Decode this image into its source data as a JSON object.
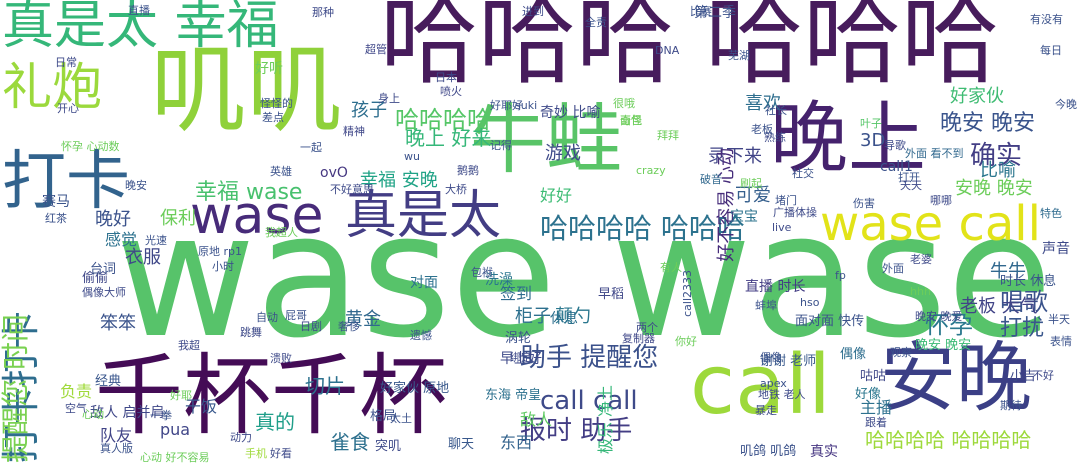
{
  "cloud": {
    "words": [
      {
        "text": "wase wase",
        "color": "#57c36a",
        "rot": 0
      },
      {
        "text": "哈哈哈 哈哈哈",
        "color": "#471c5c",
        "rot": 0
      },
      {
        "text": "叽叽",
        "color": "#8fd13a",
        "rot": 0
      },
      {
        "text": "牛蛙",
        "color": "#59c467",
        "rot": 0
      },
      {
        "text": "千杯千杯",
        "color": "#440c56",
        "rot": 0
      },
      {
        "text": "晚上",
        "color": "#45226d",
        "rot": 0
      },
      {
        "text": "安晚",
        "color": "#3b3f86",
        "rot": 0
      },
      {
        "text": "call",
        "color": "#9dd93b",
        "rot": 0
      },
      {
        "text": "打卡",
        "color": "#32638d",
        "rot": 0
      },
      {
        "text": "wase",
        "color": "#472b79",
        "rot": 0
      },
      {
        "text": "真是太",
        "color": "#433d84",
        "rot": 0
      },
      {
        "text": "wase call",
        "color": "#e2e319",
        "rot": 0
      },
      {
        "text": "真是太 幸福",
        "color": "#35b779",
        "rot": 0
      },
      {
        "text": "礼炮",
        "color": "#9bd93c",
        "rot": 0
      },
      {
        "text": "打卡打卡",
        "color": "#2e6d8e",
        "rot": 270
      },
      {
        "text": "提醒您 时间",
        "color": "#7ad151",
        "rot": 270
      },
      {
        "text": "哈哈哈哈 哈哈哈",
        "color": "#2c728e",
        "rot": 0
      },
      {
        "text": "助手 提醒您",
        "color": "#3b518b",
        "rot": 0
      },
      {
        "text": "报时 助手",
        "color": "#433d84",
        "rot": 0
      },
      {
        "text": "call call",
        "color": "#3e4a89",
        "rot": 0
      },
      {
        "text": "哈哈哈哈 哈哈哈哈",
        "color": "#9dd93b",
        "rot": 0
      },
      {
        "text": "晚安 晚安",
        "color": "#3a548c",
        "rot": 0
      },
      {
        "text": "确实",
        "color": "#433e85",
        "rot": 0
      },
      {
        "text": "哈哈哈哈",
        "color": "#55c667",
        "rot": 0
      },
      {
        "text": "幸福 wase",
        "color": "#48c16e",
        "rot": 0
      },
      {
        "text": "幸福 安晚",
        "color": "#20a386",
        "rot": 0
      },
      {
        "text": "晚上 好来",
        "color": "#35b779",
        "rot": 0
      },
      {
        "text": "录下来",
        "color": "#414487",
        "rot": 0
      },
      {
        "text": "好不容易 心动",
        "color": "#472d7b",
        "rot": 270
      },
      {
        "text": "唱歌",
        "color": "#3a538b",
        "rot": 0
      },
      {
        "text": "怀孕",
        "color": "#2a788e",
        "rot": 0
      },
      {
        "text": "打扰",
        "color": "#39568c",
        "rot": 0
      },
      {
        "text": "老板 大气",
        "color": "#414487",
        "rot": 0
      },
      {
        "text": "牛牛",
        "color": "#31688e",
        "rot": 0
      },
      {
        "text": "游戏",
        "color": "#3e4a89",
        "rot": 0
      },
      {
        "text": "可爱",
        "color": "#355f8d",
        "rot": 0
      },
      {
        "text": "比喻",
        "color": "#2a768e",
        "rot": 0
      },
      {
        "text": "喜欢",
        "color": "#2e6e8e",
        "rot": 0
      },
      {
        "text": "好家伙",
        "color": "#3fbc73",
        "rot": 0
      },
      {
        "text": "安晚 晚安",
        "color": "#6ccd5a",
        "rot": 0
      },
      {
        "text": "3D",
        "color": "#3b528b",
        "rot": 0
      },
      {
        "text": "切片",
        "color": "#2c718e",
        "rot": 0
      },
      {
        "text": "真的",
        "color": "#1f9e89",
        "rot": 0
      },
      {
        "text": "雀食",
        "color": "#2d708e",
        "rot": 0
      },
      {
        "text": "黄金",
        "color": "#31688e",
        "rot": 0
      },
      {
        "text": "柜子",
        "color": "#2d708e",
        "rot": 0
      },
      {
        "text": "颠勺",
        "color": "#2a778e",
        "rot": 0
      },
      {
        "text": "笨笨",
        "color": "#3a538b",
        "rot": 0
      },
      {
        "text": "衣服",
        "color": "#3f4788",
        "rot": 0
      },
      {
        "text": "晚好",
        "color": "#3b528b",
        "rot": 0
      },
      {
        "text": "感觉",
        "color": "#2c718e",
        "rot": 0
      },
      {
        "text": "孩子",
        "color": "#2e6e8e",
        "rot": 0
      },
      {
        "text": "签到",
        "color": "#2f6b8e",
        "rot": 0
      },
      {
        "text": "好好",
        "color": "#3dbc74",
        "rot": 0
      },
      {
        "text": "pua",
        "color": "#404688",
        "rot": 0
      },
      {
        "text": "主播",
        "color": "#2d718e",
        "rot": 0
      },
      {
        "text": "队友",
        "color": "#414487",
        "rot": 0
      },
      {
        "text": "干饭",
        "color": "#38588c",
        "rot": 0
      },
      {
        "text": "敌人",
        "color": "#5ec962",
        "rot": 0
      },
      {
        "text": "东西",
        "color": "#33638d",
        "rot": 0
      },
      {
        "text": "负责",
        "color": "#9fda3a",
        "rot": 0
      },
      {
        "text": "极乐 净土",
        "color": "#35b779",
        "rot": 270
      },
      {
        "text": "保利",
        "color": "#6ccd5a",
        "rot": 0
      },
      {
        "text": "第二季",
        "color": "#3b528b",
        "rot": 0
      },
      {
        "text": "奇妙 比喻",
        "color": "#3e4989",
        "rot": 0
      },
      {
        "text": "call1",
        "color": "#3b528b",
        "rot": 0
      },
      {
        "text": "早上好",
        "color": "#3e4a89",
        "rot": 0
      },
      {
        "text": "声音",
        "color": "#3e4a89",
        "rot": 0
      },
      {
        "text": "休息",
        "color": "#2d708e",
        "rot": 0
      },
      {
        "text": "时长 休息",
        "color": "#3a538b",
        "rot": 0
      },
      {
        "text": "宝宝",
        "color": "#2c738e",
        "rot": 0
      },
      {
        "text": "直播 时长",
        "color": "#433d84",
        "rot": 0
      },
      {
        "text": "ovO",
        "color": "#453781",
        "rot": 0
      },
      {
        "text": "对面",
        "color": "#2c718e",
        "rot": 0
      },
      {
        "text": "洗澡",
        "color": "#2a768e",
        "rot": 0
      },
      {
        "text": "赛马",
        "color": "#3a538b",
        "rot": 0
      },
      {
        "text": "偷偷",
        "color": "#3f4788",
        "rot": 0
      },
      {
        "text": "台词",
        "color": "#3b528b",
        "rot": 0
      },
      {
        "text": "经典",
        "color": "#39568c",
        "rot": 0
      },
      {
        "text": "东海 帝皇",
        "color": "#2c718e",
        "rot": 0
      },
      {
        "text": "格局",
        "color": "#3b528b",
        "rot": 0
      },
      {
        "text": "小吉",
        "color": "#3e4a89",
        "rot": 0
      },
      {
        "text": "早稻",
        "color": "#3f4788",
        "rot": 0
      },
      {
        "text": "好家伙 原地",
        "color": "#38588c",
        "rot": 0
      },
      {
        "text": "晚安 晚安",
        "color": "#3bbb75",
        "rot": 0
      },
      {
        "text": "叽鸽 叽鸽",
        "color": "#3b528b",
        "rot": 0
      },
      {
        "text": "偶像",
        "color": "#2e6e8e",
        "rot": 0
      },
      {
        "text": "敌人 启并肩",
        "color": "#3f4788",
        "rot": 0
      },
      {
        "text": "突叽",
        "color": "#3e4a89",
        "rot": 0
      },
      {
        "text": "真实",
        "color": "#453581",
        "rot": 0
      },
      {
        "text": "聊天",
        "color": "#38588c",
        "rot": 0
      },
      {
        "text": "面对面 快传",
        "color": "#3b528b",
        "rot": 0
      },
      {
        "text": "谢谢 老师",
        "color": "#38588c",
        "rot": 0
      },
      {
        "text": "咕咕",
        "color": "#3f4788",
        "rot": 0
      },
      {
        "text": "好像",
        "color": "#2a768e",
        "rot": 0
      },
      {
        "text": "涡轮",
        "color": "#3b528b",
        "rot": 0
      },
      {
        "text": "外面 看不到",
        "color": "#31688e",
        "rot": 0
      },
      {
        "text": "特色",
        "color": "#2f6b8e",
        "rot": 0
      },
      {
        "text": "打开",
        "color": "#3a548c",
        "rot": 0
      },
      {
        "text": "伤害",
        "color": "#3b528b",
        "rot": 0
      },
      {
        "text": "哪哪",
        "color": "#3e4a89",
        "rot": 0
      },
      {
        "text": "叶子",
        "color": "#55c667",
        "rot": 0
      },
      {
        "text": "偶像",
        "color": "#3b528b",
        "rot": 0
      },
      {
        "text": "熟练",
        "color": "#3e4a89",
        "rot": 0
      },
      {
        "text": "破音",
        "color": "#31688e",
        "rot": 0
      },
      {
        "text": "好听",
        "color": "#6ccd5a",
        "rot": 0
      },
      {
        "text": "怪怪的",
        "color": "#3b528b",
        "rot": 0
      },
      {
        "text": "差点",
        "color": "#3b528b",
        "rot": 0
      },
      {
        "text": "精神",
        "color": "#3f4788",
        "rot": 0
      },
      {
        "text": "晚安",
        "color": "#3b528b",
        "rot": 0
      },
      {
        "text": "日常",
        "color": "#3e4a89",
        "rot": 0
      },
      {
        "text": "开心",
        "color": "#3e4a89",
        "rot": 0
      },
      {
        "text": "直播",
        "color": "#3b528b",
        "rot": 0
      },
      {
        "text": "超管",
        "color": "#3f4788",
        "rot": 0
      },
      {
        "text": "全责",
        "color": "#3b528b",
        "rot": 0
      },
      {
        "text": "日本",
        "color": "#3e4a89",
        "rot": 0
      },
      {
        "text": "DNA",
        "color": "#3e4a89",
        "rot": 0
      },
      {
        "text": "喷火",
        "color": "#3f4788",
        "rot": 0
      },
      {
        "text": "suki",
        "color": "#3b528b",
        "rot": 0
      },
      {
        "text": "很哦",
        "color": "#6ccd5a",
        "rot": 0
      },
      {
        "text": "社长",
        "color": "#3b528b",
        "rot": 0
      },
      {
        "text": "每日",
        "color": "#3b528b",
        "rot": 0
      },
      {
        "text": "面包",
        "color": "#6ccd5a",
        "rot": 0
      },
      {
        "text": "芜湖",
        "color": "#3a548c",
        "rot": 0
      },
      {
        "text": "老婆",
        "color": "#3e4a89",
        "rot": 0
      },
      {
        "text": "外面",
        "color": "#3b528b",
        "rot": 0
      },
      {
        "text": "广播体操",
        "color": "#3e4a89",
        "rot": 0
      },
      {
        "text": "原地 rp1",
        "color": "#3b528b",
        "rot": 0
      },
      {
        "text": "光速",
        "color": "#3b528b",
        "rot": 0
      },
      {
        "text": "红茶",
        "color": "#3b528b",
        "rot": 0
      },
      {
        "text": "偶像大师",
        "color": "#3e4a89",
        "rot": 0
      },
      {
        "text": "屁哥",
        "color": "#3b528b",
        "rot": 0
      },
      {
        "text": "跳舞",
        "color": "#3e4a89",
        "rot": 0
      },
      {
        "text": "复制器",
        "color": "#3f4788",
        "rot": 0
      },
      {
        "text": "两个",
        "color": "#3e4a89",
        "rot": 0
      },
      {
        "text": "蚌埠",
        "color": "#3b528b",
        "rot": 0
      },
      {
        "text": "跟着",
        "color": "#3e4a89",
        "rot": 0
      },
      {
        "text": "表情",
        "color": "#3b528b",
        "rot": 0
      },
      {
        "text": "暴走",
        "color": "#3e4a89",
        "rot": 0
      },
      {
        "text": "真人版",
        "color": "#3b528b",
        "rot": 0
      },
      {
        "text": "空气",
        "color": "#3e4a89",
        "rot": 0
      },
      {
        "text": "一拳",
        "color": "#3b528b",
        "rot": 0
      },
      {
        "text": "动力",
        "color": "#3e4a89",
        "rot": 0
      },
      {
        "text": "太土",
        "color": "#3b528b",
        "rot": 0
      },
      {
        "text": "好看",
        "color": "#3e4a89",
        "rot": 0
      },
      {
        "text": "心动 好不容易",
        "color": "#6ccd5a",
        "rot": 0
      },
      {
        "text": "手机",
        "color": "#9fda3a",
        "rot": 0
      },
      {
        "text": "今晚",
        "color": "#3b528b",
        "rot": 0
      },
      {
        "text": "不好",
        "color": "#3e4a89",
        "rot": 0
      },
      {
        "text": "半天",
        "color": "#3b528b",
        "rot": 0
      },
      {
        "text": "晚安 晚爱",
        "color": "#3e4a89",
        "rot": 0
      },
      {
        "text": "call2333",
        "color": "#3b528b",
        "rot": 270
      },
      {
        "text": "hso",
        "color": "#3b528b",
        "rot": 0
      },
      {
        "text": "apex",
        "color": "#3b528b",
        "rot": 0
      },
      {
        "text": "地铁 老人",
        "color": "#3e4a89",
        "rot": 0
      },
      {
        "text": "观察",
        "color": "#3b528b",
        "rot": 0
      },
      {
        "text": "那种",
        "color": "#3e4a89",
        "rot": 0
      },
      {
        "text": "比赛",
        "color": "#3b528b",
        "rot": 0
      },
      {
        "text": "进到",
        "color": "#3e4a89",
        "rot": 0
      },
      {
        "text": "有没有",
        "color": "#3b528b",
        "rot": 0
      },
      {
        "text": "身上",
        "color": "#3e4a89",
        "rot": 0
      },
      {
        "text": "好耶好",
        "color": "#3b528b",
        "rot": 0
      },
      {
        "text": "拜拜",
        "color": "#6ccd5a",
        "rot": 0
      },
      {
        "text": "奇怪",
        "color": "#6ccd5a",
        "rot": 0
      },
      {
        "text": "老板",
        "color": "#3b528b",
        "rot": 0
      },
      {
        "text": "导歌",
        "color": "#3e4a89",
        "rot": 0
      },
      {
        "text": "wu",
        "color": "#3b528b",
        "rot": 0
      },
      {
        "text": "不好意思",
        "color": "#3e4a89",
        "rot": 0
      },
      {
        "text": "记得",
        "color": "#3b528b",
        "rot": 0
      },
      {
        "text": "crazy",
        "color": "#6ccd5a",
        "rot": 0
      },
      {
        "text": "社交",
        "color": "#3b528b",
        "rot": 0
      },
      {
        "text": "天天",
        "color": "#3e4a89",
        "rot": 0
      },
      {
        "text": "堵门",
        "color": "#3b528b",
        "rot": 0
      },
      {
        "text": "live",
        "color": "#3e4a89",
        "rot": 0
      },
      {
        "text": "包袱",
        "color": "#3b528b",
        "rot": 0
      },
      {
        "text": "有人",
        "color": "#6ccd5a",
        "rot": 0
      },
      {
        "text": "我超",
        "color": "#3e4a89",
        "rot": 0
      },
      {
        "text": "自动",
        "color": "#3b528b",
        "rot": 0
      },
      {
        "text": "日剧",
        "color": "#3e4a89",
        "rot": 0
      },
      {
        "text": "奢侈",
        "color": "#3b528b",
        "rot": 0
      },
      {
        "text": "心动",
        "color": "#6ccd5a",
        "rot": 0
      },
      {
        "text": "小时",
        "color": "#3b528b",
        "rot": 0
      },
      {
        "text": "大桥",
        "color": "#3e4a89",
        "rot": 0
      },
      {
        "text": "我超人",
        "color": "#6ccd5a",
        "rot": 0
      },
      {
        "text": "刷起",
        "color": "#6ccd5a",
        "rot": 0
      },
      {
        "text": "fp",
        "color": "#3b528b",
        "rot": 0
      },
      {
        "text": "hhh",
        "color": "#6ccd5a",
        "rot": 0
      },
      {
        "text": "英雄",
        "color": "#3b528b",
        "rot": 0
      },
      {
        "text": "溃败",
        "color": "#3e4a89",
        "rot": 0
      },
      {
        "text": "你好",
        "color": "#6ccd5a",
        "rot": 0
      },
      {
        "text": "好耶",
        "color": "#6ccd5a",
        "rot": 0
      },
      {
        "text": "遗憾",
        "color": "#3b528b",
        "rot": 0
      },
      {
        "text": "绑定",
        "color": "#3e4a89",
        "rot": 0
      },
      {
        "text": "怀孕 心动数",
        "color": "#6ccd5a",
        "rot": 0
      },
      {
        "text": "一起",
        "color": "#3b528b",
        "rot": 0
      },
      {
        "text": "鹅鹅",
        "color": "#3e4a89",
        "rot": 0
      },
      {
        "text": "期待",
        "color": "#3b528b",
        "rot": 0
      }
    ]
  }
}
